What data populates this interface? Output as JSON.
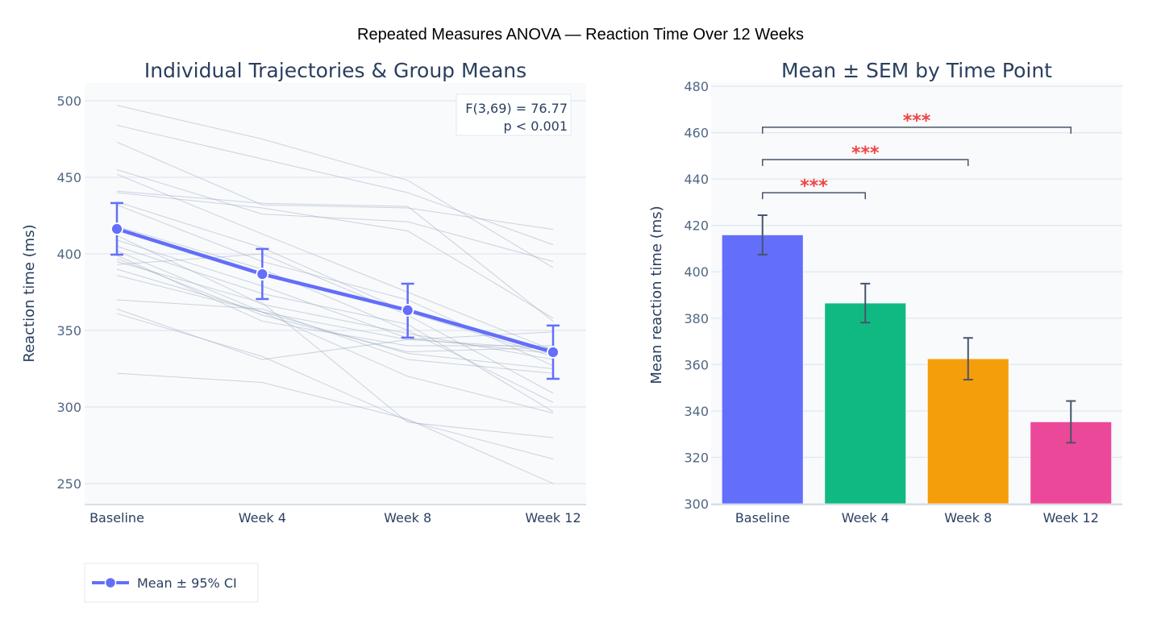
{
  "figure": {
    "title": "Repeated Measures ANOVA — Reaction Time Over 12 Weeks"
  },
  "chart_data": [
    {
      "type": "line",
      "title": "Individual Trajectories & Group Means",
      "xlabel": "",
      "ylabel": "Reaction time (ms)",
      "categories": [
        "Baseline",
        "Week 4",
        "Week 8",
        "Week 12"
      ],
      "ylim": [
        236.8,
        511.6
      ],
      "yticks": [
        250,
        300,
        350,
        400,
        450,
        500
      ],
      "grid": true,
      "trajectory_color": "#94a3b8",
      "mean_color": "#636efa",
      "trajectories": [
        [
          497,
          475,
          448,
          391
        ],
        [
          484,
          462,
          440,
          406
        ],
        [
          473,
          432,
          430,
          416
        ],
        [
          455,
          426,
          421,
          395
        ],
        [
          452,
          413,
          375,
          337
        ],
        [
          441,
          433,
          431,
          356
        ],
        [
          440,
          430,
          415,
          358
        ],
        [
          434,
          404,
          362,
          333
        ],
        [
          432,
          395,
          370,
          327
        ],
        [
          418,
          390,
          350,
          303
        ],
        [
          412,
          367,
          348,
          331
        ],
        [
          409,
          379,
          345,
          335
        ],
        [
          405,
          374,
          354,
          297
        ],
        [
          402,
          362,
          344,
          338
        ],
        [
          399,
          356,
          340,
          340
        ],
        [
          397,
          360,
          336,
          339
        ],
        [
          393,
          400,
          360,
          309
        ],
        [
          390,
          362,
          335,
          325
        ],
        [
          386,
          362,
          320,
          296
        ],
        [
          370,
          364,
          331,
          322
        ],
        [
          364,
          331,
          344,
          349
        ],
        [
          361,
          333,
          291,
          266
        ],
        [
          322,
          316,
          292,
          250
        ],
        [
          395,
          368,
          290,
          280
        ]
      ],
      "series": [
        {
          "name": "Mean ± 95% CI",
          "values": [
            416.3,
            386.8,
            363.2,
            335.8
          ],
          "ci_upper": [
            433.2,
            403.2,
            380.5,
            353.2
          ],
          "ci_lower": [
            399.5,
            370.5,
            345.3,
            318.4
          ]
        }
      ],
      "annotation": {
        "line1": "F(3,69) = 76.77",
        "line2": "p < 0.001"
      },
      "legend": {
        "position": "bottom-left",
        "label": "Mean ± 95% CI"
      }
    },
    {
      "type": "bar",
      "title": "Mean ± SEM by Time Point",
      "xlabel": "",
      "ylabel": "Mean reaction time (ms)",
      "categories": [
        "Baseline",
        "Week 4",
        "Week 8",
        "Week 12"
      ],
      "values": [
        415.9,
        386.5,
        362.5,
        335.3
      ],
      "sem": [
        8.5,
        8.4,
        9.0,
        9.0
      ],
      "colors": [
        "#636efa",
        "#10b981",
        "#f59e0b",
        "#ec4899"
      ],
      "error_color": "#475569",
      "ylim": [
        300,
        480
      ],
      "yticks": [
        300,
        320,
        340,
        360,
        380,
        400,
        420,
        440,
        460,
        480
      ],
      "grid": true,
      "significance": [
        {
          "from": "Baseline",
          "to": "Week 4",
          "y": 434.1,
          "label": "***"
        },
        {
          "from": "Baseline",
          "to": "Week 8",
          "y": 448.4,
          "label": "***"
        },
        {
          "from": "Baseline",
          "to": "Week 12",
          "y": 462.3,
          "label": "***"
        }
      ]
    }
  ]
}
